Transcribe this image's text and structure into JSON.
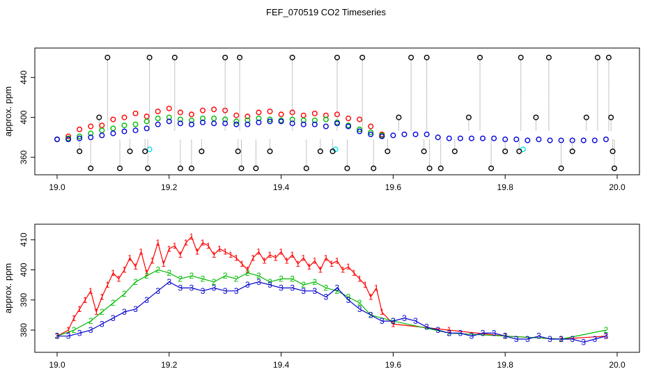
{
  "title": "FEF_070519  CO2 Timeseries",
  "chart_data": [
    {
      "type": "scatter",
      "ylabel": "approx. ppm",
      "xlim": [
        19.0,
        20.0
      ],
      "ylim": [
        346,
        466
      ],
      "x_ticks": [
        "19.0",
        "19.2",
        "19.4",
        "19.6",
        "19.8",
        "20.0"
      ],
      "x_tick_values": [
        19.0,
        19.2,
        19.4,
        19.6,
        19.8,
        20.0
      ],
      "y_ticks": [
        "360",
        "400",
        "440"
      ],
      "y_tick_values": [
        360,
        400,
        440
      ],
      "grid": false,
      "series": [
        {
          "color": "#ff0000",
          "marker": "circle",
          "x": [
            19.0,
            19.02,
            19.04,
            19.06,
            19.08,
            19.1,
            19.12,
            19.14,
            19.16,
            19.18,
            19.2,
            19.22,
            19.24,
            19.26,
            19.28,
            19.3,
            19.32,
            19.34,
            19.36,
            19.38,
            19.4,
            19.42,
            19.44,
            19.46,
            19.48,
            19.5,
            19.52,
            19.54,
            19.56,
            19.58
          ],
          "y": [
            378,
            381,
            388,
            391,
            392,
            398,
            400,
            404,
            401,
            406,
            409,
            405,
            403,
            407,
            408,
            407,
            402,
            401,
            405,
            406,
            403,
            405,
            402,
            404,
            402,
            403,
            399,
            398,
            391,
            383
          ]
        },
        {
          "color": "#00bb00",
          "marker": "circle",
          "x": [
            19.0,
            19.02,
            19.04,
            19.06,
            19.08,
            19.1,
            19.12,
            19.14,
            19.16,
            19.18,
            19.2,
            19.22,
            19.24,
            19.26,
            19.28,
            19.3,
            19.32,
            19.34,
            19.36,
            19.38,
            19.4,
            19.42,
            19.44,
            19.46,
            19.48,
            19.5,
            19.52,
            19.54,
            19.56,
            19.58
          ],
          "y": [
            378,
            379,
            381,
            384,
            387,
            389,
            392,
            393,
            396,
            399,
            400,
            398,
            397,
            399,
            399,
            398,
            396,
            397,
            399,
            398,
            397,
            398,
            397,
            397,
            398,
            395,
            392,
            388,
            385,
            382
          ]
        },
        {
          "color": "#0000dd",
          "marker": "circle",
          "x": [
            19.0,
            19.02,
            19.04,
            19.06,
            19.08,
            19.1,
            19.12,
            19.14,
            19.16,
            19.18,
            19.2,
            19.22,
            19.24,
            19.26,
            19.28,
            19.3,
            19.32,
            19.34,
            19.36,
            19.38,
            19.4,
            19.42,
            19.44,
            19.46,
            19.48,
            19.5,
            19.52,
            19.54,
            19.56,
            19.58,
            19.6,
            19.62,
            19.64,
            19.66,
            19.68,
            19.7,
            19.72,
            19.74,
            19.76,
            19.78,
            19.8,
            19.82,
            19.84,
            19.86,
            19.88,
            19.9,
            19.92,
            19.94,
            19.96,
            19.98
          ],
          "y": [
            378,
            378,
            379,
            380,
            382,
            384,
            386,
            387,
            389,
            393,
            396,
            394,
            393,
            395,
            394,
            394,
            393,
            393,
            395,
            396,
            396,
            394,
            393,
            393,
            391,
            394,
            391,
            386,
            383,
            381,
            382,
            383,
            383,
            383,
            380,
            379,
            379,
            379,
            379,
            379,
            378,
            378,
            377,
            378,
            377,
            377,
            377,
            377,
            377,
            378
          ]
        },
        {
          "color": "#00e5ee",
          "marker": "circle",
          "x": [
            19.165,
            19.497,
            19.832
          ],
          "y": [
            368,
            368,
            368
          ]
        },
        {
          "color": "#000000",
          "marker": "circle",
          "x": [
            19.04,
            19.06,
            19.075,
            19.09,
            19.112,
            19.13,
            19.157,
            19.162,
            19.165,
            19.21,
            19.22,
            19.24,
            19.258,
            19.3,
            19.323,
            19.326,
            19.329,
            19.355,
            19.38,
            19.42,
            19.445,
            19.47,
            19.492,
            19.5,
            19.518,
            19.545,
            19.565,
            19.59,
            19.61,
            19.632,
            19.655,
            19.66,
            19.665,
            19.685,
            19.71,
            19.735,
            19.775,
            19.755,
            19.8,
            19.825,
            19.828,
            19.855,
            19.878,
            19.9,
            19.92,
            19.945,
            19.965,
            19.985,
            19.989,
            19.992,
            19.995
          ],
          "y": [
            366,
            349,
            400,
            460,
            349,
            366,
            366,
            349,
            460,
            460,
            349,
            349,
            366,
            460,
            366,
            460,
            349,
            349,
            366,
            460,
            349,
            366,
            366,
            460,
            349,
            460,
            349,
            366,
            400,
            460,
            366,
            460,
            349,
            349,
            366,
            400,
            349,
            460,
            366,
            366,
            460,
            400,
            460,
            349,
            366,
            400,
            460,
            460,
            400,
            366,
            349
          ]
        }
      ]
    },
    {
      "type": "line",
      "ylabel": "approx. ppm",
      "xlim": [
        19.0,
        20.0
      ],
      "ylim": [
        374,
        414
      ],
      "x_ticks": [
        "19.0",
        "19.2",
        "19.4",
        "19.6",
        "19.8",
        "20.0"
      ],
      "x_tick_values": [
        19.0,
        19.2,
        19.4,
        19.6,
        19.8,
        20.0
      ],
      "y_ticks": [
        "380",
        "390",
        "400",
        "410"
      ],
      "y_tick_values": [
        380,
        390,
        400,
        410
      ],
      "grid": false,
      "series": [
        {
          "color": "#ff0000",
          "marker": "1",
          "x": [
            19.0,
            19.02,
            19.03,
            19.04,
            19.05,
            19.06,
            19.07,
            19.08,
            19.09,
            19.1,
            19.11,
            19.12,
            19.13,
            19.14,
            19.15,
            19.16,
            19.17,
            19.18,
            19.19,
            19.2,
            19.21,
            19.22,
            19.23,
            19.24,
            19.25,
            19.26,
            19.27,
            19.28,
            19.29,
            19.3,
            19.31,
            19.32,
            19.33,
            19.34,
            19.35,
            19.36,
            19.37,
            19.38,
            19.39,
            19.4,
            19.41,
            19.42,
            19.43,
            19.44,
            19.45,
            19.46,
            19.47,
            19.48,
            19.49,
            19.5,
            19.51,
            19.52,
            19.53,
            19.54,
            19.55,
            19.56,
            19.57,
            19.58,
            19.6,
            19.7,
            19.8,
            19.9,
            19.98
          ],
          "y": [
            378,
            380,
            384,
            387,
            390,
            393,
            386,
            391,
            395,
            399,
            397,
            400,
            404,
            401,
            406,
            399,
            403,
            409,
            402,
            407,
            408,
            405,
            409,
            411,
            406,
            409,
            408,
            405,
            407,
            406,
            405,
            404,
            402,
            400,
            404,
            406,
            403,
            405,
            404,
            406,
            403,
            405,
            402,
            404,
            401,
            403,
            400,
            404,
            402,
            403,
            400,
            401,
            399,
            397,
            395,
            391,
            394,
            386,
            382,
            380,
            378,
            377,
            378
          ]
        },
        {
          "color": "#00bb00",
          "marker": "2",
          "x": [
            19.0,
            19.03,
            19.06,
            19.08,
            19.1,
            19.12,
            19.14,
            19.16,
            19.18,
            19.2,
            19.22,
            19.24,
            19.26,
            19.28,
            19.3,
            19.32,
            19.34,
            19.36,
            19.38,
            19.4,
            19.42,
            19.44,
            19.46,
            19.48,
            19.5,
            19.52,
            19.54,
            19.56,
            19.6,
            19.7,
            19.8,
            19.9,
            19.98
          ],
          "y": [
            378,
            380,
            383,
            386,
            389,
            392,
            396,
            398,
            400,
            399,
            397,
            398,
            397,
            396,
            398,
            397,
            399,
            398,
            396,
            397,
            397,
            395,
            396,
            394,
            393,
            391,
            389,
            385,
            383,
            379,
            378,
            377,
            380
          ]
        },
        {
          "color": "#0000cc",
          "marker": "3",
          "x": [
            19.0,
            19.02,
            19.04,
            19.06,
            19.08,
            19.1,
            19.12,
            19.14,
            19.16,
            19.18,
            19.2,
            19.22,
            19.24,
            19.26,
            19.28,
            19.3,
            19.32,
            19.34,
            19.36,
            19.38,
            19.4,
            19.42,
            19.44,
            19.46,
            19.48,
            19.5,
            19.52,
            19.54,
            19.56,
            19.58,
            19.6,
            19.62,
            19.64,
            19.66,
            19.68,
            19.7,
            19.72,
            19.74,
            19.76,
            19.78,
            19.8,
            19.82,
            19.84,
            19.86,
            19.88,
            19.9,
            19.92,
            19.94,
            19.96,
            19.98
          ],
          "y": [
            378,
            378,
            379,
            380,
            382,
            384,
            386,
            387,
            390,
            393,
            396,
            394,
            394,
            393,
            394,
            393,
            393,
            395,
            396,
            395,
            394,
            394,
            393,
            393,
            391,
            394,
            390,
            387,
            385,
            383,
            383,
            384,
            383,
            381,
            380,
            379,
            379,
            378,
            379,
            379,
            378,
            377,
            377,
            378,
            377,
            377,
            377,
            376,
            377,
            378
          ]
        }
      ]
    }
  ]
}
